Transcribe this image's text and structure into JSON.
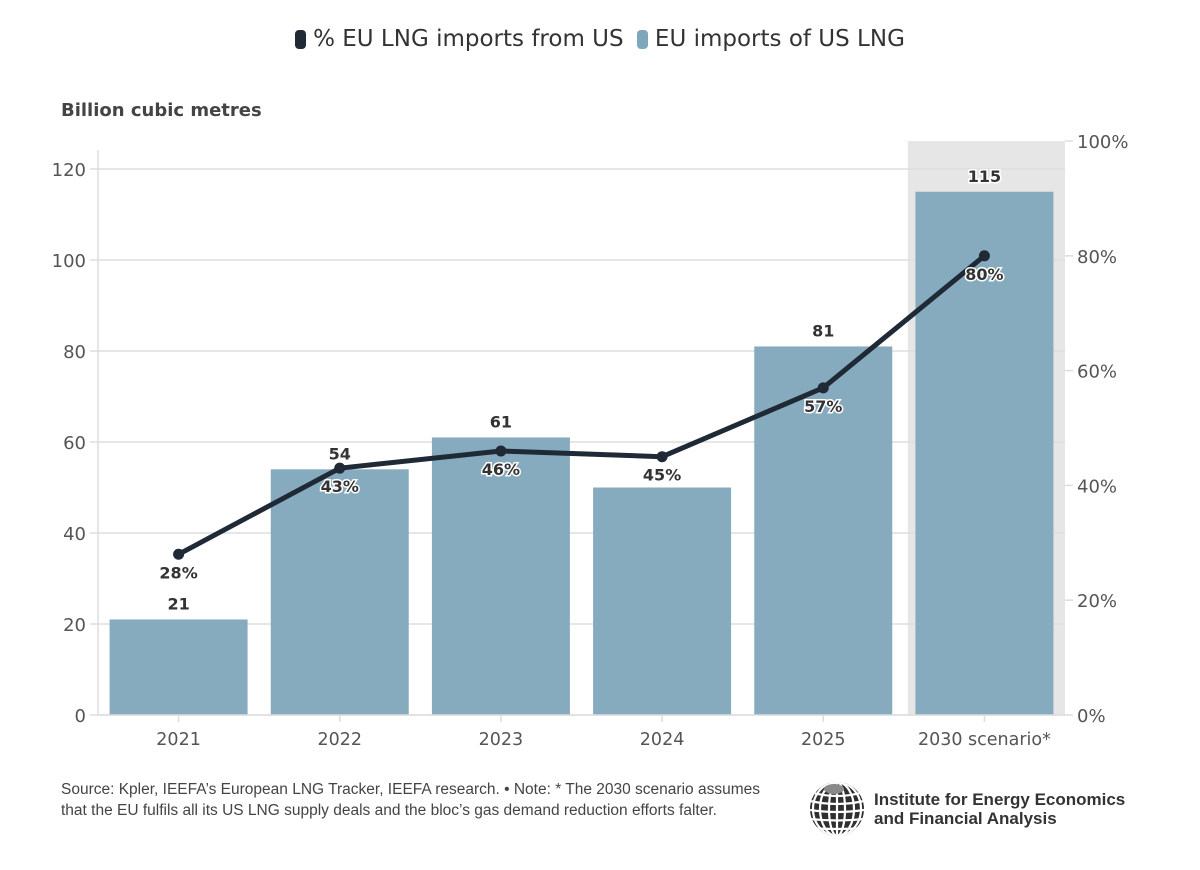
{
  "legend": {
    "items": [
      {
        "label": "% EU LNG imports from US",
        "color": "#1f2a36"
      },
      {
        "label": "EU imports of US LNG",
        "color": "#7ea7bc"
      }
    ]
  },
  "unit_label": "Billion cubic metres",
  "footer": {
    "note": "Source: Kpler, IEEFA’s European LNG Tracker, IEEFA research. • Note: * The 2030 scenario assumes that the EU fulfils all its US LNG supply deals and the bloc’s gas demand reduction efforts falter.",
    "logo_line1": "Institute for Energy Economics",
    "logo_line2": "and Financial Analysis"
  },
  "colors": {
    "bar": "#87abbe",
    "line": "#1f2a36",
    "highlight_band": "#e6e6e6",
    "grid": "#dddddd"
  },
  "chart_data": {
    "type": "bar",
    "title": "",
    "categories": [
      "2021",
      "2022",
      "2023",
      "2024",
      "2025",
      "2030 scenario*"
    ],
    "series": [
      {
        "name": "EU imports of US LNG",
        "type": "bar",
        "axis": "left",
        "values": [
          21,
          54,
          61,
          50,
          81,
          115
        ],
        "labels": [
          "21",
          "54",
          "61",
          "",
          "81",
          "115"
        ]
      },
      {
        "name": "% EU LNG imports from US",
        "type": "line",
        "axis": "right",
        "values": [
          28,
          43,
          46,
          45,
          57,
          80
        ],
        "labels": [
          "28%",
          "43%",
          "46%",
          "45%",
          "57%",
          "80%"
        ]
      }
    ],
    "ylabel": "Billion cubic metres",
    "ylim": [
      0,
      126
    ],
    "yticks": [
      0,
      20,
      40,
      60,
      80,
      100,
      120
    ],
    "y2lim": [
      0,
      100
    ],
    "y2ticks": [
      "0%",
      "20%",
      "40%",
      "60%",
      "80%",
      "100%"
    ],
    "y2tick_values": [
      0,
      20,
      40,
      60,
      80,
      100
    ],
    "highlighted_category": "2030 scenario*",
    "grid": true,
    "legend_position": "top"
  }
}
